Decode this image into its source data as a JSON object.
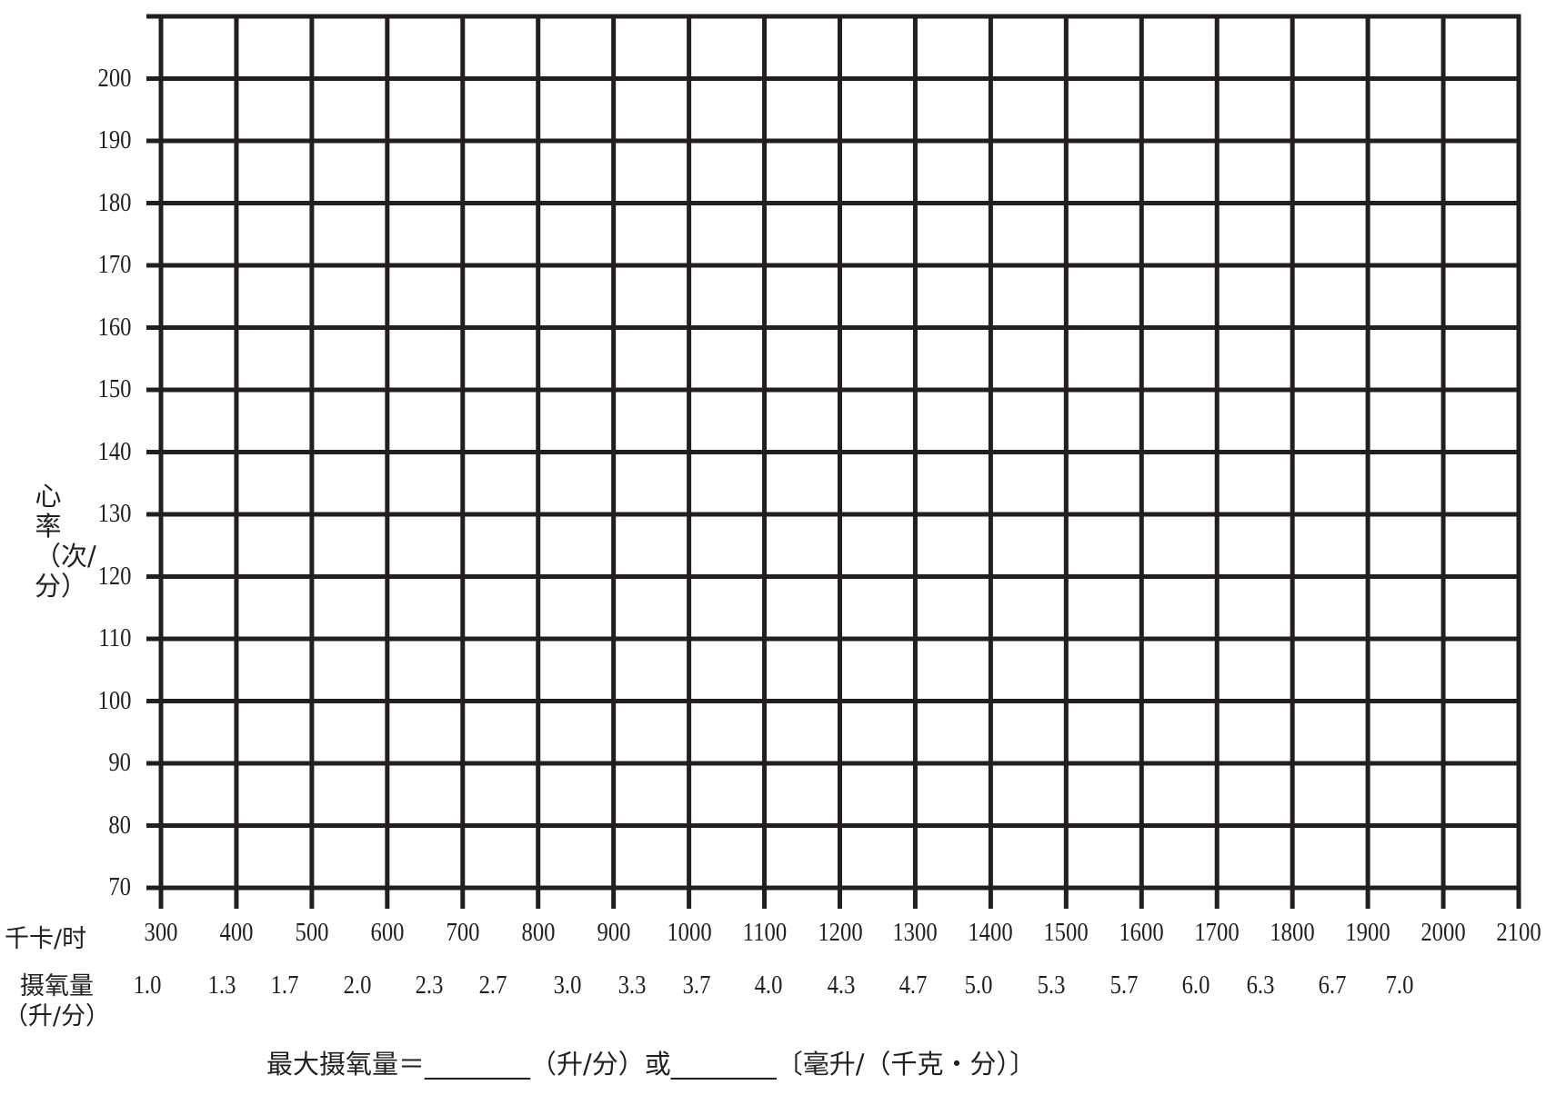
{
  "chart_data": {
    "type": "line",
    "title": "",
    "ylabel": "心率（次/分）",
    "xlabel": "千卡/时",
    "secondary_xlabel": "摄氧量（升/分）",
    "secondary_xlabel_line1": "摄氧量",
    "secondary_xlabel_line2": "（升/分）",
    "ylim": [
      70,
      210
    ],
    "xlim": [
      300,
      2100
    ],
    "grid": true,
    "y_ticks": [
      "70",
      "80",
      "90",
      "100",
      "110",
      "120",
      "130",
      "140",
      "150",
      "160",
      "170",
      "180",
      "190",
      "200"
    ],
    "x_ticks": [
      "300",
      "400",
      "500",
      "600",
      "700",
      "800",
      "900",
      "1000",
      "1100",
      "1200",
      "1300",
      "1400",
      "1500",
      "1600",
      "1700",
      "1800",
      "1900",
      "2000",
      "2100"
    ],
    "secondary_x_ticks": [
      "1.0",
      "1.3",
      "1.7",
      "2.0",
      "2.3",
      "2.7",
      "3.0",
      "3.3",
      "3.7",
      "4.0",
      "4.3",
      "4.7",
      "5.0",
      "5.3",
      "5.7",
      "6.0",
      "6.3",
      "6.7",
      "7.0"
    ],
    "series": [],
    "line_color": "#231f20"
  },
  "footer": {
    "formula": "最大摄氧量＝________（升/分）或________〔毫升/（千克・分）〕"
  }
}
